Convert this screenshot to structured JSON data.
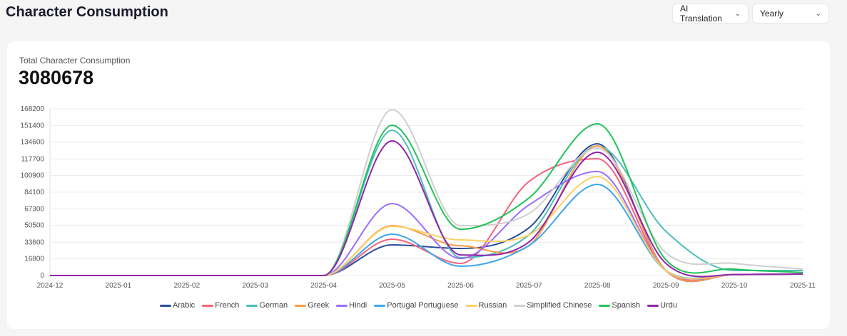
{
  "header": {
    "title": "Character Consumption",
    "service_select": "AI Translation",
    "period_select": "Yearly"
  },
  "summary": {
    "label": "Total Character Consumption",
    "value": "3080678"
  },
  "chart_data": {
    "type": "line",
    "smooth": true,
    "grid": "horizontal",
    "legend_placement": "bottom",
    "x": [
      "2024-12",
      "2025-01",
      "2025-02",
      "2025-03",
      "2025-04",
      "2025-05",
      "2025-06",
      "2025-07",
      "2025-08",
      "2025-09",
      "2025-10",
      "2025-11"
    ],
    "yticks": [
      0,
      16800,
      33600,
      50500,
      67300,
      84100,
      100900,
      117700,
      134600,
      151400,
      168200
    ],
    "ylim": [
      0,
      168200
    ],
    "series": [
      {
        "name": "Arabic",
        "color": "#2b4c9b",
        "values": [
          0,
          0,
          0,
          0,
          0,
          30900,
          27300,
          48200,
          133000,
          5000,
          1000,
          1500
        ]
      },
      {
        "name": "French",
        "color": "#f4627e",
        "values": [
          0,
          0,
          0,
          0,
          0,
          36700,
          12200,
          94900,
          117900,
          5000,
          1000,
          1500
        ]
      },
      {
        "name": "German",
        "color": "#4cbfb8",
        "values": [
          0,
          0,
          0,
          0,
          0,
          146600,
          18000,
          41000,
          130800,
          44600,
          5000,
          5000
        ]
      },
      {
        "name": "Greek",
        "color": "#fb9a46",
        "values": [
          0,
          0,
          0,
          0,
          0,
          50300,
          30000,
          30200,
          130800,
          5000,
          1000,
          1500
        ]
      },
      {
        "name": "Hindi",
        "color": "#9b6dfa",
        "values": [
          0,
          0,
          0,
          0,
          0,
          72600,
          17200,
          71200,
          105000,
          5000,
          1000,
          1500
        ]
      },
      {
        "name": "Portugal Portuguese",
        "color": "#3ea6ea",
        "values": [
          0,
          0,
          0,
          0,
          0,
          41700,
          9300,
          30200,
          92000,
          5000,
          1000,
          1500
        ]
      },
      {
        "name": "Russian",
        "color": "#fcd065",
        "values": [
          0,
          0,
          0,
          0,
          0,
          49600,
          35900,
          41000,
          99900,
          5000,
          1000,
          1500
        ]
      },
      {
        "name": "Simplified Chinese",
        "color": "#cfcfcf",
        "values": [
          0,
          0,
          0,
          0,
          0,
          167500,
          50300,
          62500,
          128700,
          23000,
          12200,
          6500
        ]
      },
      {
        "name": "Spanish",
        "color": "#22c25a",
        "values": [
          0,
          0,
          0,
          0,
          0,
          151700,
          46700,
          78300,
          153100,
          15800,
          6500,
          3000
        ]
      },
      {
        "name": "Urdu",
        "color": "#8e24aa",
        "values": [
          0,
          0,
          0,
          0,
          0,
          135900,
          20800,
          33800,
          124400,
          12200,
          1000,
          1500
        ]
      }
    ]
  }
}
